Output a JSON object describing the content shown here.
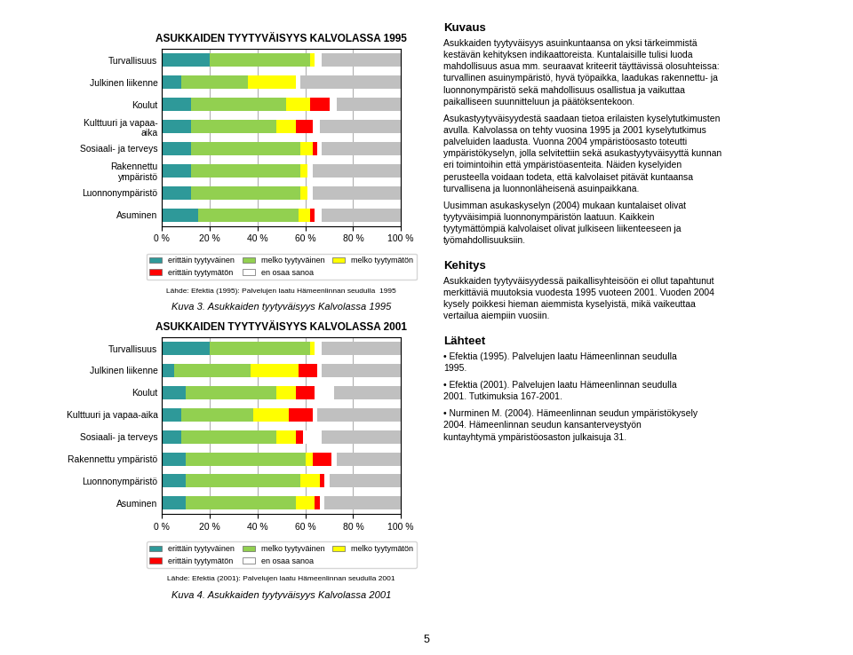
{
  "chart_data": [
    {
      "type": "bar",
      "orientation": "horizontal",
      "stacked": true,
      "title": "ASUKKAIDEN TYYTYVÄISYYS KALVOLASSA 1995",
      "categories": [
        "Turvallisuus",
        "Julkinen liikenne",
        "Koulut",
        "Kulttuuri ja vapaa-\naika",
        "Sosiaali- ja terveys",
        "Rakennettu\nympäristö",
        "Luonnonympäristö",
        "Asuminen"
      ],
      "series": [
        {
          "name": "erittäin tyytyväinen",
          "color": "#2e9999",
          "values": [
            20,
            8,
            12,
            12,
            12,
            12,
            12,
            15
          ]
        },
        {
          "name": "melko tyytyväinen",
          "color": "#92d050",
          "values": [
            42,
            28,
            40,
            36,
            46,
            46,
            46,
            42
          ]
        },
        {
          "name": "melko tyytymätön",
          "color": "#ffff00",
          "values": [
            2,
            20,
            10,
            8,
            5,
            3,
            3,
            5
          ]
        },
        {
          "name": "erittäin tyytymätön",
          "color": "#ff0000",
          "values": [
            0,
            0,
            8,
            7,
            2,
            0,
            0,
            2
          ]
        },
        {
          "name": "en osaa sanoa",
          "color": "#ffffff",
          "values": [
            3,
            2,
            3,
            3,
            2,
            2,
            2,
            3
          ]
        },
        {
          "color": "#c0c0c0",
          "values": [
            33,
            42,
            27,
            34,
            33,
            37,
            37,
            33
          ]
        }
      ],
      "xlim": [
        0,
        100
      ],
      "xticks": [
        {
          "value": 0,
          "label": "0 %"
        },
        {
          "value": 20,
          "label": "20 %"
        },
        {
          "value": 40,
          "label": "40 %"
        },
        {
          "value": 60,
          "label": "60 %"
        },
        {
          "value": 80,
          "label": "80 %"
        },
        {
          "value": 100,
          "label": "100 %"
        }
      ],
      "grid": true,
      "legend": "upper center",
      "annotations": [
        "Lähde: Efektia (1995): Palvelujen laatu Hämeenlinnan seudulla  1995",
        "Kuva 3. Asukkaiden tyytyväisyys Kalvolassa 1995"
      ]
    },
    {
      "type": "bar",
      "orientation": "horizontal",
      "stacked": true,
      "title": "ASUKKAIDEN TYYTYVÄISYYS KALVOLASSA 2001",
      "categories": [
        "Turvallisuus",
        "Julkinen liikenne",
        "Koulut",
        "Kulttuuri ja vapaa-aika",
        "Sosiaali- ja terveys",
        "Rakennettu ympäristö",
        "Luonnonympäristö",
        "Asuminen"
      ],
      "series": [
        {
          "name": "erittäin tyytyväinen",
          "color": "#2e9999",
          "values": [
            20,
            5,
            10,
            8,
            8,
            10,
            10,
            10
          ]
        },
        {
          "name": "melko tyytyväinen",
          "color": "#92d050",
          "values": [
            42,
            32,
            38,
            30,
            40,
            50,
            48,
            46
          ]
        },
        {
          "name": "melko tyytymätön",
          "color": "#ffff00",
          "values": [
            2,
            20,
            8,
            15,
            8,
            3,
            8,
            8
          ]
        },
        {
          "name": "erittäin tyytymätön",
          "color": "#ff0000",
          "values": [
            0,
            8,
            8,
            10,
            3,
            8,
            2,
            2
          ]
        },
        {
          "name": "en osaa sanoa",
          "color": "#ffffff",
          "values": [
            3,
            2,
            8,
            2,
            8,
            2,
            2,
            2
          ]
        },
        {
          "color": "#c0c0c0",
          "values": [
            33,
            33,
            28,
            35,
            33,
            27,
            30,
            32
          ]
        }
      ],
      "xlim": [
        0,
        100
      ],
      "xticks": [
        {
          "value": 0,
          "label": "0 %"
        },
        {
          "value": 20,
          "label": "20 %"
        },
        {
          "value": 40,
          "label": "40 %"
        },
        {
          "value": 60,
          "label": "60 %"
        },
        {
          "value": 80,
          "label": "80 %"
        },
        {
          "value": 100,
          "label": "100 %"
        }
      ],
      "grid": true,
      "legend": "upper center",
      "annotations": [
        "Lähde: Efektia (2001): Palvelujen laatu Hämeenlinnan seudulla 2001",
        "Kuva 4. Asukkaiden tyytyväisyys Kalvolassa 2001"
      ]
    }
  ],
  "annotations": [
    {
      "heading": "Kuvaus",
      "paragraphs": [
        "Asukkaiden tyytyväisyys asuinkuntaansa on yksi tärkeimmistä\nkestävän kehityksen indikaattoreista. Kuntalaisille tulisi luoda\nmahdollisuus asua mm. seuraavat kriteerit täyttävissä olosuhteissa:\nturvallinen asuinympäristö, hyvä työpaikka, laadukas rakennettu- ja\nluonnonympäristö sekä mahdollisuus osallistua ja vaikuttaa\npaikalliseen suunnitteluun ja päätöksentekoon.",
        "Asukastyytyväisyydestä saadaan tietoa erilaisten kyselytutkimusten\navulla. Kalvolassa on tehty vuosina 1995 ja 2001 kyselytutkimus\npalveluiden laadusta. Vuonna 2004 ympäristöosasto toteutti\nympäristökyselyn, jolla selvitettiin sekä asukastyytyväisyyttä kunnan\neri toimintoihin että ympäristöasenteita. Näiden kyselyiden\nperusteella voidaan todeta, että kalvolaiset pitävät kuntaansa\nturvallisena ja luonnonläheisenä asuinpaikkana.",
        "Uusimman asukaskyselyn (2004) mukaan kuntalaiset olivat\ntyytyväisimpiä luonnonympäristön laatuun. Kaikkein\ntyytymättömpiä kalvolaiset olivat julkiseen liikenteeseen ja\ntyömahdollisuuksiin."
      ]
    },
    {
      "heading": "Kehitys",
      "paragraphs": [
        "Asukkaiden tyytyväisyydessä paikallisyhteisöön ei ollut tapahtunut\nmerkittäviä muutoksia vuodesta 1995 vuoteen 2001. Vuoden 2004\nkysely poikkesi hieman aiemmista kyselyistä, mikä vaikeuttaa\nvertailua aiempiin vuosiin."
      ]
    },
    {
      "heading": "Lähteet",
      "paragraphs": [
        "• Efektia (1995). Palvelujen laatu Hämeenlinnan seudulla\n1995.",
        "• Efektia (2001). Palvelujen laatu Hämeenlinnan seudulla\n2001. Tutkimuksia 167-2001.",
        "• Nurminen M. (2004). Hämeenlinnan seudun ympäristökysely\n2004. Hämeenlinnan seudun kansanterveystyön\nkuntayhtymä ympäristöosaston julkaisuja 31."
      ]
    },
    "5"
  ]
}
